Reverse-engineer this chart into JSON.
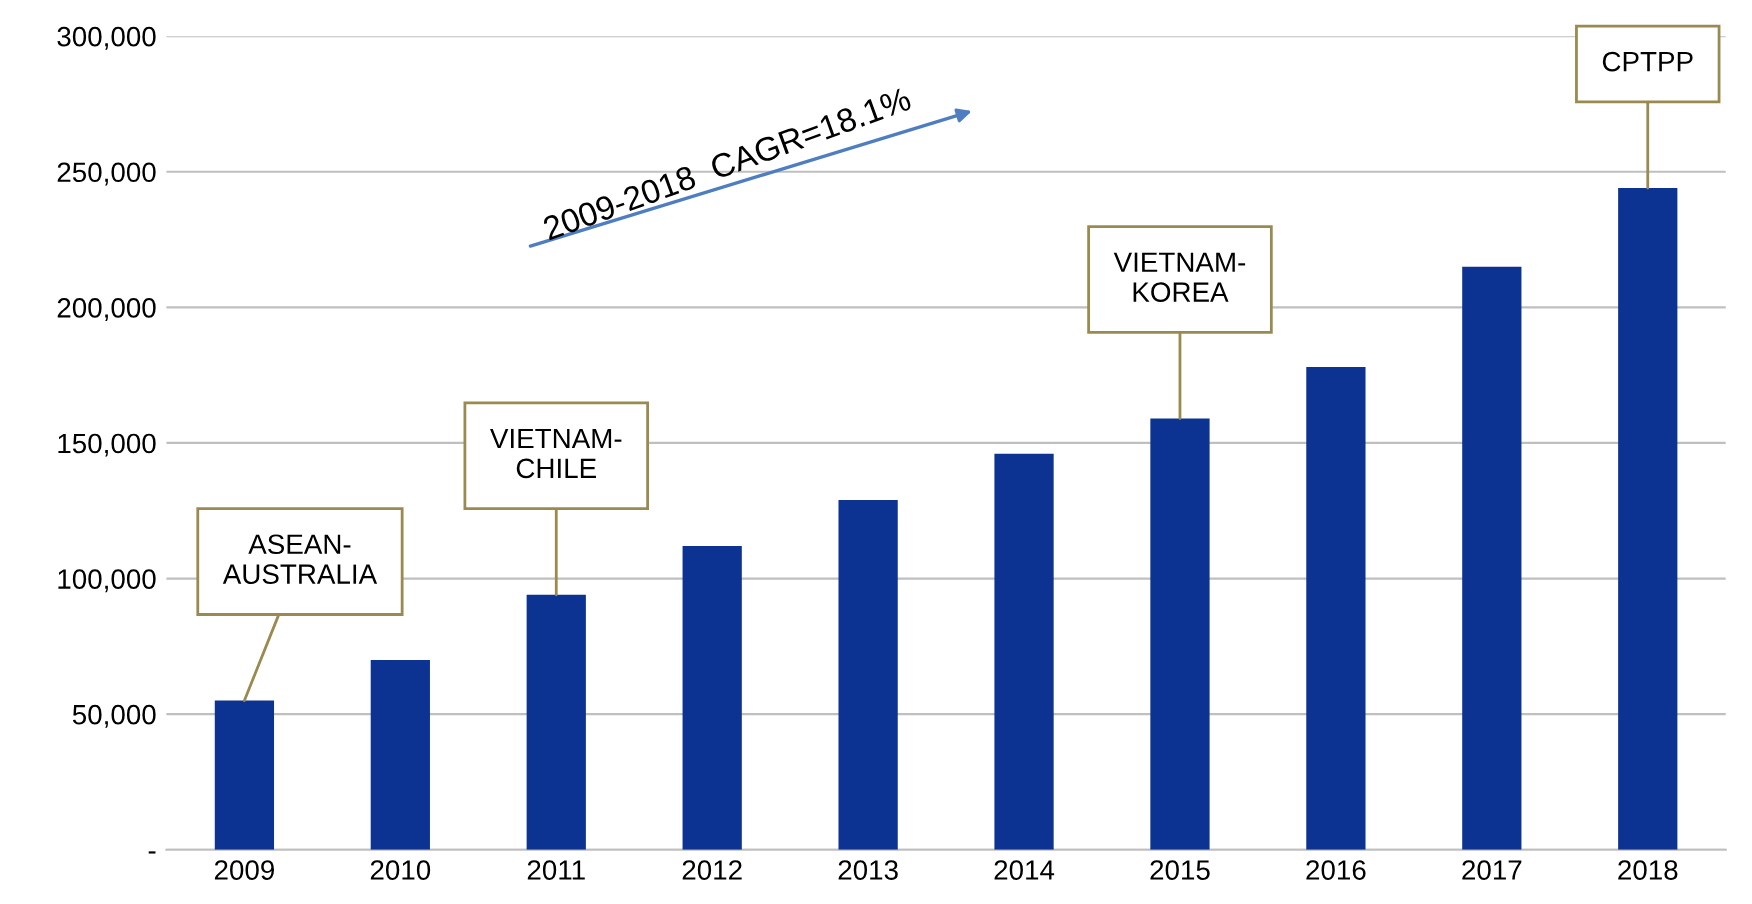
{
  "chart_data": {
    "type": "bar",
    "categories": [
      "2009",
      "2010",
      "2011",
      "2012",
      "2013",
      "2014",
      "2015",
      "2016",
      "2017",
      "2018"
    ],
    "values": [
      55000,
      70000,
      94000,
      112000,
      129000,
      146000,
      159000,
      178000,
      215000,
      244000
    ],
    "color": "#0c3391",
    "ylim": [
      0,
      300000
    ],
    "yticks": [
      {
        "value": 0,
        "label": "-"
      },
      {
        "value": 50000,
        "label": "50,000"
      },
      {
        "value": 100000,
        "label": "100,000"
      },
      {
        "value": 150000,
        "label": "150,000"
      },
      {
        "value": 200000,
        "label": "200,000"
      },
      {
        "value": 250000,
        "label": "250,000"
      },
      {
        "value": 300000,
        "label": "300,000"
      }
    ],
    "grid": "y",
    "annotations": [
      {
        "text": "ASEAN-\nAUSTRALIA",
        "x": "2009",
        "y": 55000
      },
      {
        "text": "VIETNAM-\nCHILE",
        "x": "2011",
        "y": 94000
      },
      {
        "text": "VIETNAM-\nKOREA",
        "x": "2015",
        "y": 159000
      },
      {
        "text": "CPTPP",
        "x": "2018",
        "y": 244000
      },
      "2009-2018  CAGR=18.1%"
    ]
  }
}
